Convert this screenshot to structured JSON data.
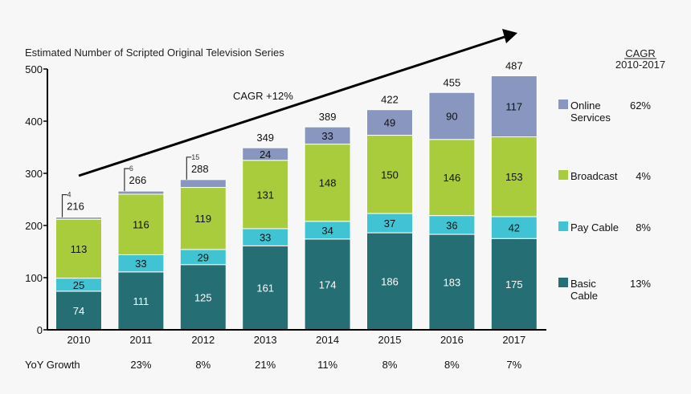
{
  "chart_data": {
    "type": "bar",
    "stacked": true,
    "title": "Estimated Number of Scripted Original Television Series",
    "categories": [
      "2010",
      "2011",
      "2012",
      "2013",
      "2014",
      "2015",
      "2016",
      "2017"
    ],
    "series": [
      {
        "name": "Basic Cable",
        "color": "#256e74",
        "values": [
          74,
          111,
          125,
          161,
          174,
          186,
          183,
          175
        ],
        "cagr": "13%"
      },
      {
        "name": "Pay Cable",
        "color": "#40c4d4",
        "values": [
          25,
          33,
          29,
          33,
          34,
          37,
          36,
          42
        ],
        "cagr": "8%"
      },
      {
        "name": "Broadcast",
        "color": "#a8cc3c",
        "values": [
          113,
          116,
          119,
          131,
          148,
          150,
          146,
          153
        ],
        "cagr": "4%"
      },
      {
        "name": "Online Services",
        "color": "#8896c0",
        "values": [
          4,
          6,
          15,
          24,
          33,
          49,
          90,
          117
        ],
        "cagr": "62%"
      }
    ],
    "totals": [
      "216",
      "266",
      "288",
      "349",
      "389",
      "422",
      "455",
      "487"
    ],
    "ylim": [
      0,
      500
    ],
    "yticks": [
      "0",
      "100",
      "200",
      "300",
      "400",
      "500"
    ],
    "grid": false,
    "legend_position": "right",
    "legend_header": "CAGR",
    "legend_subheader": "2010-2017",
    "annotation": "CAGR +12%",
    "yoy_label": "YoY Growth",
    "yoy_growth": [
      "",
      "23%",
      "8%",
      "21%",
      "11%",
      "8%",
      "8%",
      "7%"
    ]
  }
}
